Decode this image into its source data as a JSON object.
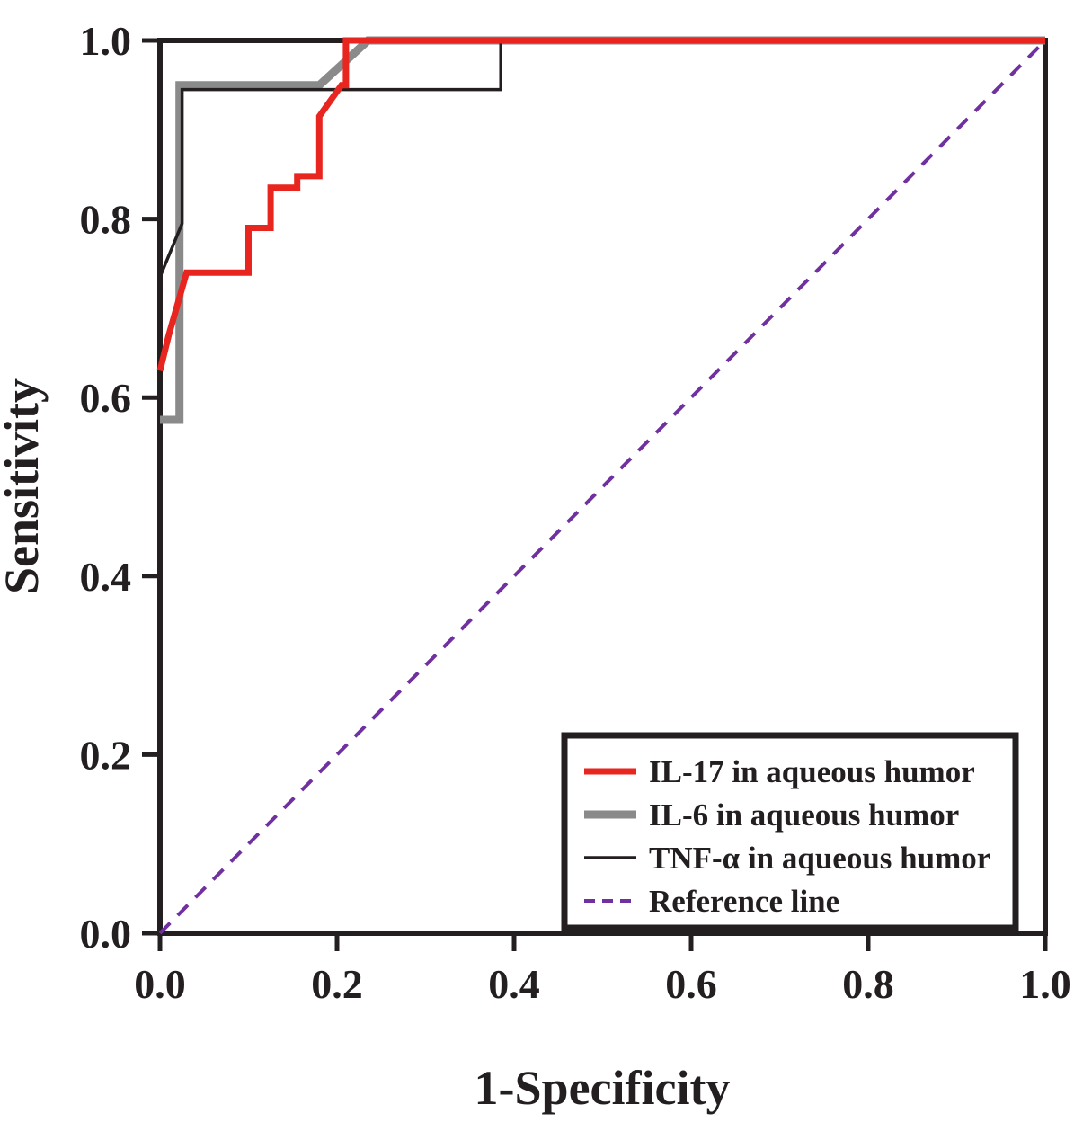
{
  "figure": {
    "background": "#ffffff",
    "frame_color": "#231f20"
  },
  "chart_data": {
    "type": "line",
    "subtype": "roc-curve",
    "title": "",
    "xlabel": "1-Specificity",
    "ylabel": "Sensitivity",
    "xlim": [
      0,
      1
    ],
    "ylim": [
      0,
      1
    ],
    "grid": false,
    "xticks": [
      0,
      0.2,
      0.4,
      0.6,
      0.8,
      1
    ],
    "yticks": [
      0,
      0.2,
      0.4,
      0.6,
      0.8,
      1
    ],
    "xtick_labels": [
      "0.0",
      "0.2",
      "0.4",
      "0.6",
      "0.8",
      "1.0"
    ],
    "ytick_labels": [
      "0.0",
      "0.2",
      "0.4",
      "0.6",
      "0.8",
      "1.0"
    ],
    "legend": {
      "position": "lower-right",
      "border_color": "#231f20",
      "background": "#ffffff"
    },
    "series": [
      {
        "id": "il17",
        "name": "IL-17 in aqueous humor",
        "color": "#e8251f",
        "width": 7,
        "dash": null,
        "z": 4,
        "points": [
          [
            0,
            0.63
          ],
          [
            0.01,
            0.67
          ],
          [
            0.03,
            0.74
          ],
          [
            0.1,
            0.74
          ],
          [
            0.1,
            0.79
          ],
          [
            0.125,
            0.79
          ],
          [
            0.125,
            0.835
          ],
          [
            0.155,
            0.835
          ],
          [
            0.155,
            0.848
          ],
          [
            0.18,
            0.848
          ],
          [
            0.18,
            0.915
          ],
          [
            0.205,
            0.95
          ],
          [
            0.21,
            0.95
          ],
          [
            0.21,
            1.0
          ],
          [
            1,
            1
          ]
        ]
      },
      {
        "id": "il6",
        "name": "IL-6 in aqueous humor",
        "color": "#8a8a8a",
        "width": 9,
        "dash": null,
        "z": 2,
        "points": [
          [
            0,
            0.575
          ],
          [
            0.022,
            0.575
          ],
          [
            0.022,
            0.95
          ],
          [
            0.18,
            0.95
          ],
          [
            0.235,
            1.0
          ],
          [
            1,
            1
          ]
        ]
      },
      {
        "id": "tnfa",
        "name": "TNF-α in aqueous humor",
        "color": "#231f20",
        "width": 3.5,
        "dash": null,
        "z": 3,
        "points": [
          [
            0,
            0.735
          ],
          [
            0.025,
            0.795
          ],
          [
            0.025,
            0.945
          ],
          [
            0.385,
            0.945
          ],
          [
            0.385,
            1.0
          ],
          [
            1,
            1
          ]
        ]
      },
      {
        "id": "reference",
        "name": "Reference line",
        "color": "#7030a0",
        "width": 4,
        "dash": "16 12",
        "z": 1,
        "points": [
          [
            0,
            0
          ],
          [
            1,
            1
          ]
        ]
      }
    ]
  }
}
